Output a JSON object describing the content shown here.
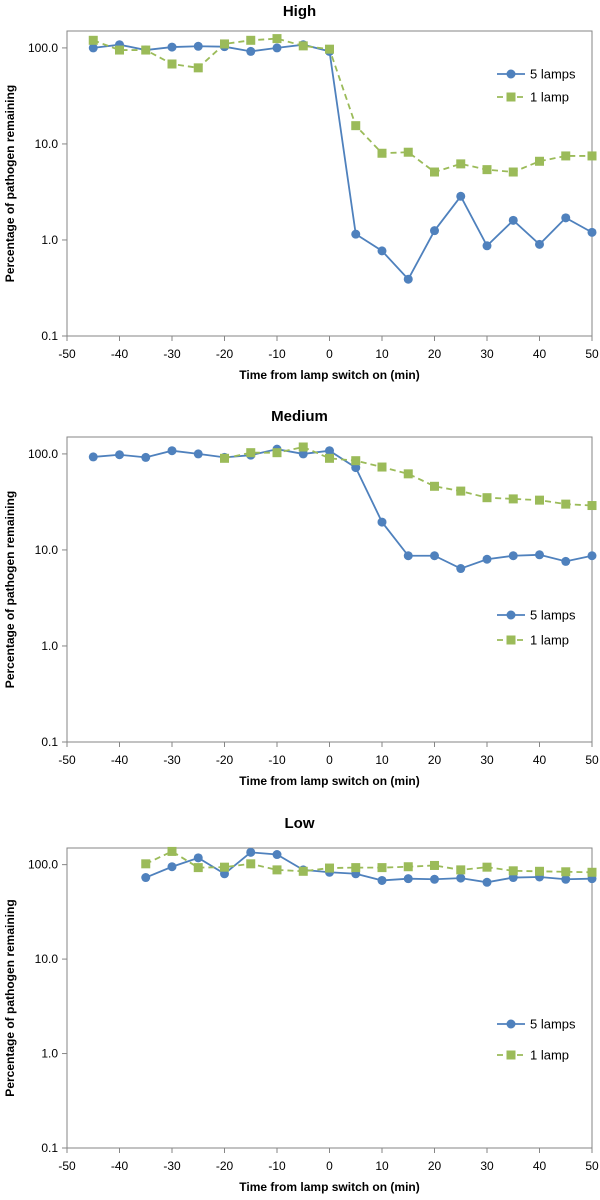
{
  "chart_data": [
    {
      "type": "line",
      "title": "High",
      "xlabel": "Time from lamp switch on (min)",
      "ylabel": "Percentage of pathogen remaining",
      "xlim": [
        -50,
        50
      ],
      "ylim": [
        0.1,
        150
      ],
      "yscale": "log",
      "x_ticks": [
        "-50",
        "-40",
        "-30",
        "-20",
        "-10",
        "0",
        "10",
        "20",
        "30",
        "40",
        "50"
      ],
      "y_ticks": [
        "0.1",
        "1.0",
        "10.0",
        "100.0"
      ],
      "legend_position": "top-right",
      "series": [
        {
          "name": "5 lamps",
          "color": "#4f81bd",
          "marker": "circle",
          "dash": "solid",
          "x": [
            -45,
            -40,
            -35,
            -30,
            -25,
            -20,
            -15,
            -10,
            -5,
            0,
            5,
            10,
            15,
            20,
            25,
            30,
            35,
            40,
            45,
            50
          ],
          "values": [
            100,
            108,
            95,
            102,
            104,
            103,
            92,
            100,
            108,
            92,
            1.15,
            0.77,
            0.39,
            1.25,
            2.85,
            0.87,
            1.6,
            0.9,
            1.7,
            1.2
          ]
        },
        {
          "name": "1 lamp",
          "color": "#9bbb59",
          "marker": "square",
          "dash": "dashed",
          "x": [
            -45,
            -40,
            -35,
            -30,
            -25,
            -20,
            -15,
            -10,
            -5,
            0,
            5,
            10,
            15,
            20,
            25,
            30,
            35,
            40,
            45,
            50
          ],
          "values": [
            120,
            95,
            95,
            68,
            62,
            110,
            120,
            125,
            105,
            97,
            15.5,
            8,
            8.2,
            5.1,
            6.2,
            5.4,
            5.1,
            6.6,
            7.5,
            7.5
          ]
        }
      ]
    },
    {
      "type": "line",
      "title": "Medium",
      "xlabel": "Time from lamp switch on (min)",
      "ylabel": "Percentage of pathogen remaining",
      "xlim": [
        -50,
        50
      ],
      "ylim": [
        0.1,
        150
      ],
      "yscale": "log",
      "x_ticks": [
        "-50",
        "-40",
        "-30",
        "-20",
        "-10",
        "0",
        "10",
        "20",
        "30",
        "40",
        "50"
      ],
      "y_ticks": [
        "0.1",
        "1.0",
        "10.0",
        "100.0"
      ],
      "legend_position": "right",
      "series": [
        {
          "name": "5 lamps",
          "color": "#4f81bd",
          "marker": "circle",
          "dash": "solid",
          "x": [
            -45,
            -40,
            -35,
            -30,
            -25,
            -20,
            -15,
            -10,
            -5,
            0,
            5,
            10,
            15,
            20,
            25,
            30,
            35,
            40,
            45,
            50
          ],
          "values": [
            93,
            98,
            92,
            108,
            100,
            92,
            97,
            112,
            100,
            108,
            72,
            19.5,
            8.7,
            8.7,
            6.4,
            8,
            8.7,
            8.9,
            7.6,
            8.7
          ]
        },
        {
          "name": "1 lamp",
          "color": "#9bbb59",
          "marker": "square",
          "dash": "dashed",
          "x": [
            -20,
            -15,
            -10,
            -5,
            0,
            5,
            10,
            15,
            20,
            25,
            30,
            35,
            40,
            45,
            50
          ],
          "values": [
            90,
            103,
            103,
            118,
            90,
            85,
            73,
            62,
            46,
            41,
            35,
            34,
            33,
            30,
            29
          ]
        }
      ]
    },
    {
      "type": "line",
      "title": "Low",
      "xlabel": "Time from lamp switch on (min)",
      "ylabel": "Percentage of pathogen remaining",
      "xlim": [
        -50,
        50
      ],
      "ylim": [
        0.1,
        150
      ],
      "yscale": "log",
      "x_ticks": [
        "-50",
        "-40",
        "-30",
        "-20",
        "-10",
        "0",
        "10",
        "20",
        "30",
        "40",
        "50"
      ],
      "y_ticks": [
        "0.1",
        "1.0",
        "10.0",
        "100.0"
      ],
      "legend_position": "right",
      "series": [
        {
          "name": "5 lamps",
          "color": "#4f81bd",
          "marker": "circle",
          "dash": "solid",
          "x": [
            -35,
            -30,
            -25,
            -20,
            -15,
            -10,
            -5,
            0,
            5,
            10,
            15,
            20,
            25,
            30,
            35,
            40,
            45,
            50
          ],
          "values": [
            73,
            95,
            118,
            80,
            135,
            128,
            88,
            83,
            80,
            68,
            71,
            70,
            72,
            65,
            73,
            74,
            70,
            71
          ]
        },
        {
          "name": "1 lamp",
          "color": "#9bbb59",
          "marker": "square",
          "dash": "dashed",
          "x": [
            -35,
            -30,
            -25,
            -20,
            -15,
            -10,
            -5,
            0,
            5,
            10,
            15,
            20,
            25,
            30,
            35,
            40,
            45,
            50
          ],
          "values": [
            102,
            138,
            93,
            94,
            102,
            88,
            85,
            92,
            93,
            93,
            95,
            98,
            88,
            94,
            86,
            85,
            84,
            83
          ]
        }
      ]
    }
  ]
}
